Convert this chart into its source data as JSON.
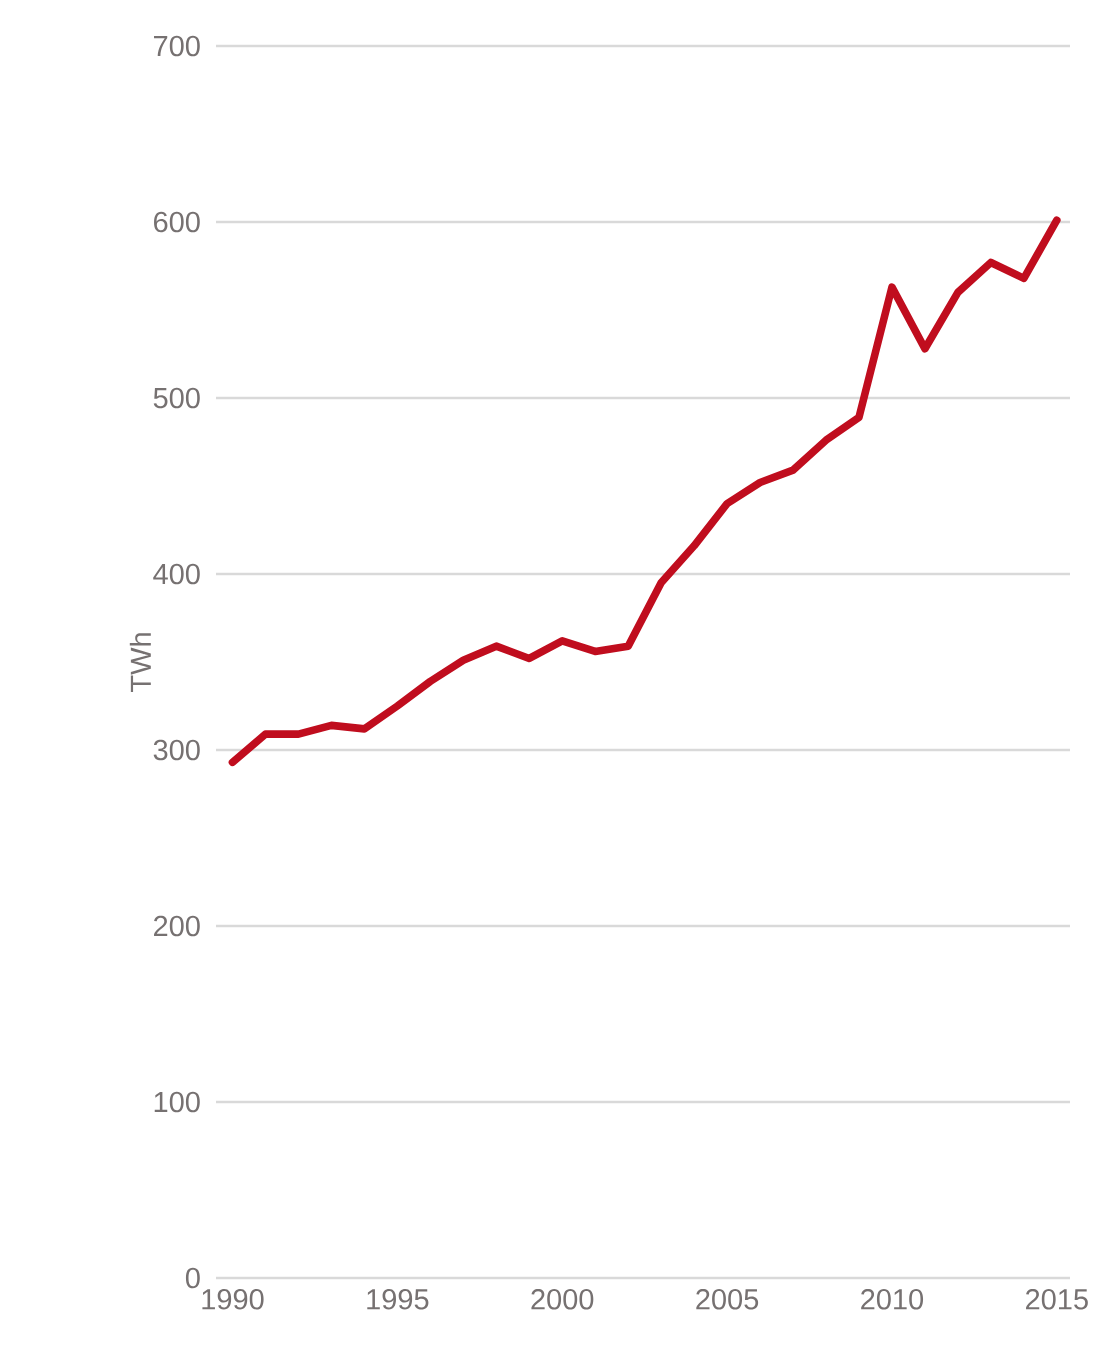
{
  "chart_data": {
    "type": "line",
    "ylabel": "TWh",
    "x": [
      1990,
      1991,
      1992,
      1993,
      1994,
      1995,
      1996,
      1997,
      1998,
      1999,
      2000,
      2001,
      2002,
      2003,
      2004,
      2005,
      2006,
      2007,
      2008,
      2009,
      2010,
      2011,
      2012,
      2013,
      2014,
      2015
    ],
    "series": [
      {
        "color": "#c00d1e",
        "values": [
          293,
          309,
          309,
          314,
          312,
          325,
          339,
          351,
          359,
          352,
          362,
          356,
          359,
          395,
          416,
          440,
          452,
          459,
          476,
          489,
          563,
          528,
          560,
          577,
          568,
          601
        ]
      }
    ],
    "xlim": [
      1989.5,
      2015.4
    ],
    "xticks": [
      1990,
      1995,
      2000,
      2005,
      2010,
      2015
    ],
    "ylim": [
      0,
      700
    ],
    "yticks": [
      0,
      100,
      200,
      300,
      400,
      500,
      600,
      700
    ],
    "grid": "y",
    "marker": "none",
    "line_style": "solid"
  }
}
